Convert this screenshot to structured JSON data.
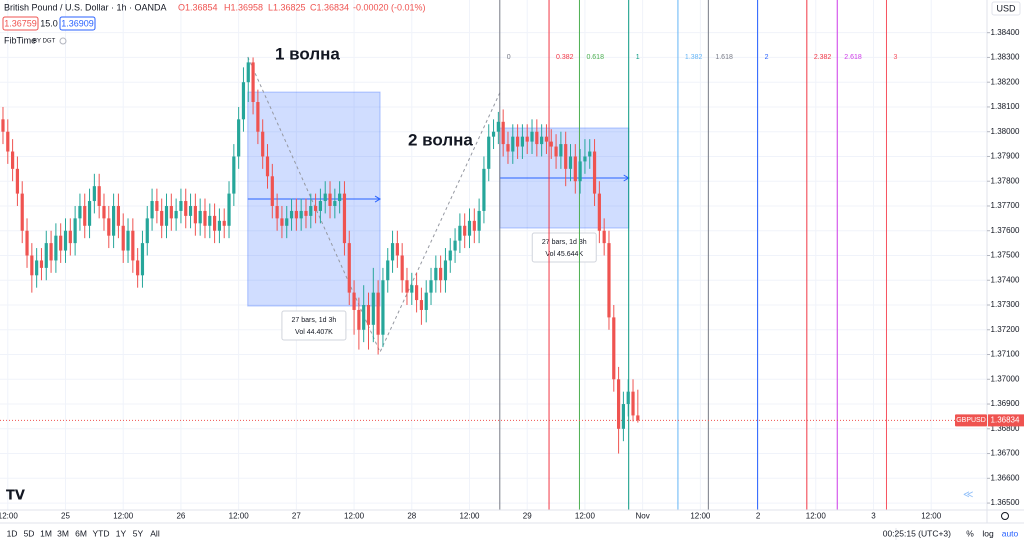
{
  "header": {
    "symbol": "British Pound / U.S. Dollar · 1h · OANDA",
    "ohlc": [
      "O1.36854",
      "H1.36958",
      "L1.36825",
      "C1.36834",
      "-0.00020 (-0.01%)"
    ],
    "bid": "1.36759",
    "spread": "15.0",
    "ask": "1.36909",
    "indicator": "FibTime",
    "indicator_by": "BY DGT",
    "currency": "USD"
  },
  "chart_data": {
    "type": "candlestick",
    "up_color": "#26a69a",
    "down_color": "#ef5350",
    "candles": [
      [
        1.3805,
        1.381,
        1.3795,
        1.38
      ],
      [
        1.38,
        1.3805,
        1.3787,
        1.3792
      ],
      [
        1.3792,
        1.3797,
        1.378,
        1.3785
      ],
      [
        1.3785,
        1.379,
        1.377,
        1.3775
      ],
      [
        1.3775,
        1.378,
        1.3755,
        1.376
      ],
      [
        1.376,
        1.3765,
        1.3745,
        1.375
      ],
      [
        1.375,
        1.3755,
        1.3735,
        1.3742
      ],
      [
        1.3742,
        1.3753,
        1.3737,
        1.3748
      ],
      [
        1.3748,
        1.3753,
        1.374,
        1.3745
      ],
      [
        1.3745,
        1.376,
        1.374,
        1.3755
      ],
      [
        1.3755,
        1.376,
        1.3743,
        1.3748
      ],
      [
        1.3748,
        1.3763,
        1.3743,
        1.3758
      ],
      [
        1.3758,
        1.3763,
        1.3747,
        1.3752
      ],
      [
        1.3752,
        1.3765,
        1.3747,
        1.376
      ],
      [
        1.376,
        1.3765,
        1.375,
        1.3755
      ],
      [
        1.3755,
        1.377,
        1.375,
        1.3765
      ],
      [
        1.3765,
        1.3775,
        1.376,
        1.377
      ],
      [
        1.377,
        1.3775,
        1.3757,
        1.3762
      ],
      [
        1.3762,
        1.3777,
        1.3757,
        1.3772
      ],
      [
        1.3772,
        1.3783,
        1.3767,
        1.3778
      ],
      [
        1.3778,
        1.3783,
        1.3765,
        1.377
      ],
      [
        1.377,
        1.3775,
        1.376,
        1.3765
      ],
      [
        1.3765,
        1.377,
        1.3753,
        1.3758
      ],
      [
        1.3758,
        1.3775,
        1.3753,
        1.377
      ],
      [
        1.377,
        1.3775,
        1.3757,
        1.3762
      ],
      [
        1.3762,
        1.3767,
        1.3747,
        1.3752
      ],
      [
        1.3752,
        1.3765,
        1.3747,
        1.376
      ],
      [
        1.376,
        1.3765,
        1.3743,
        1.3748
      ],
      [
        1.3748,
        1.3753,
        1.3737,
        1.3742
      ],
      [
        1.3742,
        1.376,
        1.3737,
        1.3755
      ],
      [
        1.3755,
        1.377,
        1.375,
        1.3765
      ],
      [
        1.3765,
        1.3777,
        1.376,
        1.3772
      ],
      [
        1.3772,
        1.3777,
        1.3763,
        1.3768
      ],
      [
        1.3768,
        1.3773,
        1.3757,
        1.3762
      ],
      [
        1.3762,
        1.3775,
        1.3757,
        1.377
      ],
      [
        1.377,
        1.3775,
        1.376,
        1.3765
      ],
      [
        1.3765,
        1.3773,
        1.376,
        1.3768
      ],
      [
        1.3768,
        1.3777,
        1.3763,
        1.3772
      ],
      [
        1.3772,
        1.3777,
        1.3761,
        1.3766
      ],
      [
        1.3766,
        1.3775,
        1.3761,
        1.377
      ],
      [
        1.377,
        1.3775,
        1.3758,
        1.3763
      ],
      [
        1.3763,
        1.3773,
        1.3758,
        1.3768
      ],
      [
        1.3768,
        1.3773,
        1.3757,
        1.3762
      ],
      [
        1.3762,
        1.3771,
        1.3757,
        1.3766
      ],
      [
        1.3766,
        1.3771,
        1.3755,
        1.376
      ],
      [
        1.376,
        1.3769,
        1.3755,
        1.3764
      ],
      [
        1.3764,
        1.3769,
        1.3757,
        1.3762
      ],
      [
        1.3762,
        1.378,
        1.3757,
        1.3775
      ],
      [
        1.3775,
        1.3795,
        1.377,
        1.379
      ],
      [
        1.379,
        1.381,
        1.3785,
        1.3805
      ],
      [
        1.3805,
        1.3826,
        1.38,
        1.382
      ],
      [
        1.382,
        1.383,
        1.3812,
        1.3828
      ],
      [
        1.3828,
        1.383,
        1.3807,
        1.3812
      ],
      [
        1.3812,
        1.3817,
        1.3795,
        1.38
      ],
      [
        1.38,
        1.3805,
        1.3785,
        1.379
      ],
      [
        1.379,
        1.3795,
        1.3777,
        1.3782
      ],
      [
        1.3782,
        1.3787,
        1.3765,
        1.377
      ],
      [
        1.377,
        1.3775,
        1.376,
        1.3765
      ],
      [
        1.3765,
        1.377,
        1.3757,
        1.3762
      ],
      [
        1.3762,
        1.377,
        1.3757,
        1.3765
      ],
      [
        1.3765,
        1.3773,
        1.376,
        1.3768
      ],
      [
        1.3768,
        1.3773,
        1.376,
        1.3765
      ],
      [
        1.3765,
        1.3773,
        1.376,
        1.3768
      ],
      [
        1.3768,
        1.3773,
        1.3761,
        1.3766
      ],
      [
        1.3766,
        1.3775,
        1.3761,
        1.377
      ],
      [
        1.377,
        1.3775,
        1.3763,
        1.3768
      ],
      [
        1.3768,
        1.3777,
        1.3763,
        1.3772
      ],
      [
        1.3772,
        1.378,
        1.3767,
        1.3775
      ],
      [
        1.3775,
        1.378,
        1.3765,
        1.377
      ],
      [
        1.377,
        1.3777,
        1.3765,
        1.3772
      ],
      [
        1.3772,
        1.378,
        1.3767,
        1.3775
      ],
      [
        1.3775,
        1.378,
        1.375,
        1.3755
      ],
      [
        1.3755,
        1.376,
        1.373,
        1.3735
      ],
      [
        1.3735,
        1.374,
        1.3718,
        1.3728
      ],
      [
        1.3728,
        1.3733,
        1.3712,
        1.372
      ],
      [
        1.372,
        1.3738,
        1.3715,
        1.373
      ],
      [
        1.373,
        1.3735,
        1.3712,
        1.3722
      ],
      [
        1.3722,
        1.3745,
        1.3715,
        1.3735
      ],
      [
        1.3735,
        1.374,
        1.371,
        1.3718
      ],
      [
        1.3718,
        1.3745,
        1.3713,
        1.374
      ],
      [
        1.374,
        1.3753,
        1.3735,
        1.3748
      ],
      [
        1.3748,
        1.376,
        1.3743,
        1.3755
      ],
      [
        1.3755,
        1.376,
        1.3745,
        1.375
      ],
      [
        1.375,
        1.3755,
        1.3735,
        1.374
      ],
      [
        1.374,
        1.3745,
        1.373,
        1.3735
      ],
      [
        1.3735,
        1.3743,
        1.373,
        1.3738
      ],
      [
        1.3738,
        1.3743,
        1.3727,
        1.3732
      ],
      [
        1.3732,
        1.3737,
        1.3722,
        1.3728
      ],
      [
        1.3728,
        1.374,
        1.3723,
        1.3735
      ],
      [
        1.3735,
        1.3745,
        1.373,
        1.374
      ],
      [
        1.374,
        1.375,
        1.3735,
        1.3745
      ],
      [
        1.3745,
        1.375,
        1.3735,
        1.374
      ],
      [
        1.374,
        1.3753,
        1.3735,
        1.3748
      ],
      [
        1.3748,
        1.3757,
        1.3743,
        1.3752
      ],
      [
        1.3752,
        1.3761,
        1.3747,
        1.3756
      ],
      [
        1.3756,
        1.3767,
        1.3751,
        1.3762
      ],
      [
        1.3762,
        1.3767,
        1.3753,
        1.3758
      ],
      [
        1.3758,
        1.3769,
        1.3753,
        1.3764
      ],
      [
        1.3764,
        1.3769,
        1.3755,
        1.376
      ],
      [
        1.376,
        1.3773,
        1.3755,
        1.3768
      ],
      [
        1.3768,
        1.379,
        1.3763,
        1.3785
      ],
      [
        1.3785,
        1.3803,
        1.378,
        1.3798
      ],
      [
        1.3798,
        1.3805,
        1.3793,
        1.38
      ],
      [
        1.38,
        1.3808,
        1.3795,
        1.3804
      ],
      [
        1.3804,
        1.3809,
        1.379,
        1.3795
      ],
      [
        1.3795,
        1.38,
        1.3787,
        1.3792
      ],
      [
        1.3792,
        1.3803,
        1.3787,
        1.3798
      ],
      [
        1.3798,
        1.3803,
        1.3789,
        1.3794
      ],
      [
        1.3794,
        1.3803,
        1.3789,
        1.3798
      ],
      [
        1.3798,
        1.3803,
        1.3791,
        1.3796
      ],
      [
        1.3796,
        1.3805,
        1.3791,
        1.38
      ],
      [
        1.38,
        1.3805,
        1.379,
        1.3795
      ],
      [
        1.3795,
        1.3803,
        1.379,
        1.3798
      ],
      [
        1.3798,
        1.3803,
        1.3791,
        1.3796
      ],
      [
        1.3796,
        1.3801,
        1.3789,
        1.3794
      ],
      [
        1.3794,
        1.3799,
        1.3785,
        1.379
      ],
      [
        1.379,
        1.38,
        1.3785,
        1.3795
      ],
      [
        1.3795,
        1.38,
        1.3778,
        1.3785
      ],
      [
        1.3785,
        1.3795,
        1.378,
        1.379
      ],
      [
        1.379,
        1.3795,
        1.3775,
        1.378
      ],
      [
        1.378,
        1.3793,
        1.3775,
        1.3788
      ],
      [
        1.3788,
        1.3797,
        1.3783,
        1.379
      ],
      [
        1.379,
        1.3797,
        1.3785,
        1.3792
      ],
      [
        1.3792,
        1.3797,
        1.377,
        1.3775
      ],
      [
        1.3775,
        1.378,
        1.3755,
        1.376
      ],
      [
        1.376,
        1.3765,
        1.375,
        1.3755
      ],
      [
        1.3755,
        1.376,
        1.372,
        1.3725
      ],
      [
        1.3725,
        1.373,
        1.3695,
        1.37
      ],
      [
        1.37,
        1.3705,
        1.367,
        1.368
      ],
      [
        1.368,
        1.3695,
        1.3675,
        1.369
      ],
      [
        1.369,
        1.37,
        1.3685,
        1.3695
      ],
      [
        1.3695,
        1.37,
        1.3683,
        1.36854
      ],
      [
        1.36854,
        1.36958,
        1.36825,
        1.36834
      ]
    ],
    "xlim": [
      -0.62,
      204.6
    ],
    "xticks": [
      {
        "value": 1,
        "label": "12:00"
      },
      {
        "value": 13,
        "label": "25"
      },
      {
        "value": 25,
        "label": "12:00"
      },
      {
        "value": 37,
        "label": "26"
      },
      {
        "value": 49,
        "label": "12:00"
      },
      {
        "value": 61,
        "label": "27"
      },
      {
        "value": 73,
        "label": "12:00"
      },
      {
        "value": 85,
        "label": "28"
      },
      {
        "value": 97,
        "label": "12:00"
      },
      {
        "value": 109,
        "label": "29"
      },
      {
        "value": 121,
        "label": "12:00"
      },
      {
        "value": 133,
        "label": "Nov"
      },
      {
        "value": 145,
        "label": "12:00"
      },
      {
        "value": 157,
        "label": "2"
      },
      {
        "value": 169,
        "label": "12:00"
      },
      {
        "value": 181,
        "label": "3"
      },
      {
        "value": 193,
        "label": "12:00"
      }
    ],
    "ylim": [
      1.36472,
      1.38532
    ],
    "yticks": [
      {
        "value": 1.365,
        "label": "1.36500"
      },
      {
        "value": 1.366,
        "label": "1.36600"
      },
      {
        "value": 1.367,
        "label": "1.36700"
      },
      {
        "value": 1.368,
        "label": "1.36800"
      },
      {
        "value": 1.369,
        "label": "1.36900"
      },
      {
        "value": 1.37,
        "label": "1.37000"
      },
      {
        "value": 1.371,
        "label": "1.37100"
      },
      {
        "value": 1.372,
        "label": "1.37200"
      },
      {
        "value": 1.373,
        "label": "1.37300"
      },
      {
        "value": 1.374,
        "label": "1.37400"
      },
      {
        "value": 1.375,
        "label": "1.37500"
      },
      {
        "value": 1.376,
        "label": "1.37600"
      },
      {
        "value": 1.377,
        "label": "1.37700"
      },
      {
        "value": 1.378,
        "label": "1.37800"
      },
      {
        "value": 1.379,
        "label": "1.37900"
      },
      {
        "value": 1.38,
        "label": "1.38000"
      },
      {
        "value": 1.381,
        "label": "1.38100"
      },
      {
        "value": 1.382,
        "label": "1.38200"
      },
      {
        "value": 1.383,
        "label": "1.38300"
      },
      {
        "value": 1.384,
        "label": "1.38400"
      }
    ],
    "grid": true,
    "last_price": {
      "symbol": "GBPUSD",
      "value": 1.36834,
      "label": "1.36834",
      "color": "#ef5350"
    },
    "fib_time": {
      "anchors": [
        103.3,
        130.1
      ],
      "levels": [
        0,
        0.382,
        0.618,
        1,
        1.382,
        1.618,
        2,
        2.382,
        2.618,
        3
      ],
      "colors": [
        "#787b86",
        "#f23645",
        "#4caf50",
        "#089981",
        "#64b5f6",
        "#787b86",
        "#2962ff",
        "#f23645",
        "#ce39e8",
        "#f7525f"
      ]
    },
    "measures": [
      {
        "x": [
          50.9,
          78.4
        ],
        "y": [
          1.3816,
          1.37296
        ],
        "bars": "27 bars, 1d 3h",
        "volume": "Vol 44.407K"
      },
      {
        "x": [
          103.3,
          130.1
        ],
        "y": [
          1.38015,
          1.37611
        ],
        "bars": "27 bars, 1d 3h",
        "volume": "Vol 45.644K"
      }
    ],
    "wave_path": {
      "x": [
        50.9,
        78.4,
        103.3
      ],
      "y": [
        1.38302,
        1.3711,
        1.38157
      ]
    },
    "annotations": [
      "1 волна",
      "2 волна"
    ]
  },
  "toolbar": {
    "ranges": [
      "1D",
      "5D",
      "1M",
      "3M",
      "6M",
      "YTD",
      "1Y",
      "5Y",
      "All"
    ],
    "clock": "00:25:15 (UTC+3)",
    "scale_options": [
      "%",
      "log",
      "auto"
    ]
  }
}
